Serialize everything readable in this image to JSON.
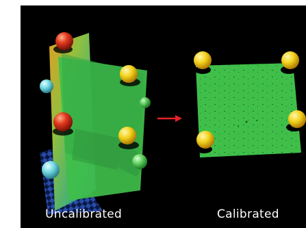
{
  "figure": {
    "left_caption": "Uncalibrated",
    "right_caption": "Calibrated"
  },
  "colors": {
    "background": "#000000",
    "plane_green": "#3fbf4a",
    "arrow": "#e8202a",
    "sphere_red": "#e23a1e",
    "sphere_yellow": "#f2d21a",
    "sphere_cyan": "#6fd6e0",
    "text": "#ffffff"
  }
}
